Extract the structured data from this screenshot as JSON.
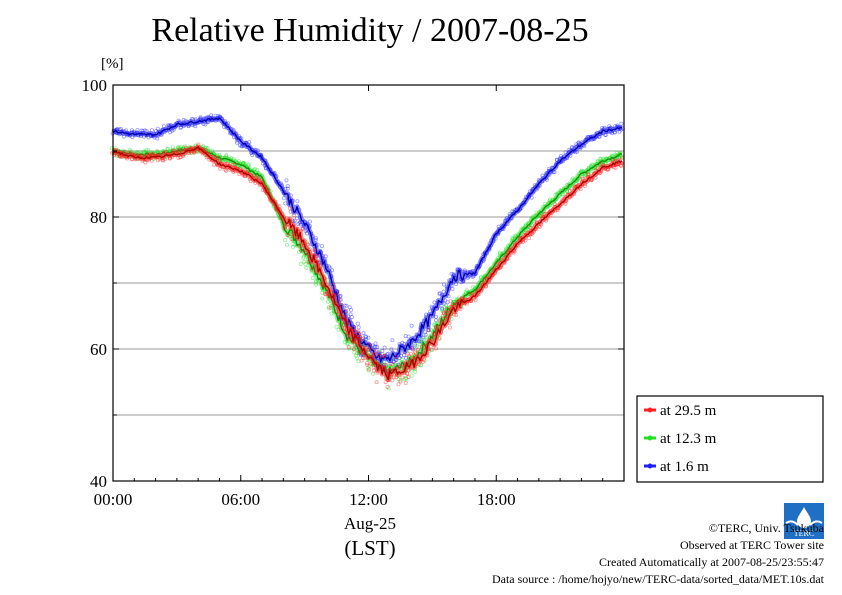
{
  "title": "Relative Humidity / 2007-08-25",
  "y_unit": "[%]",
  "x_date_label": "Aug-25",
  "x_zone_label": "(LST)",
  "legend": [
    {
      "label": "at 29.5 m",
      "color": "#ff2020"
    },
    {
      "label": "at 12.3 m",
      "color": "#20e020"
    },
    {
      "label": "at 1.6 m",
      "color": "#2020ff"
    }
  ],
  "footer": {
    "copyright": "©TERC, Univ. Tsukuba",
    "site": "Observed at TERC Tower site",
    "created": "Created Automatically at 2007-08-25/23:55:47",
    "source": "Data source : /home/hojyo/new/TERC-data/sorted_data/MET.10s.dat"
  },
  "logo_text": "TERC",
  "chart_data": {
    "type": "line",
    "title": "Relative Humidity / 2007-08-25",
    "ylabel": "[%]",
    "xlabel": "Aug-25 (LST)",
    "xlim": [
      0,
      24
    ],
    "ylim": [
      40,
      100
    ],
    "x_ticks": [
      "00:00",
      "06:00",
      "12:00",
      "18:00"
    ],
    "x_tick_values": [
      0,
      6,
      12,
      18
    ],
    "y_ticks": [
      "40",
      "60",
      "80",
      "100"
    ],
    "y_tick_values": [
      40,
      60,
      80,
      100
    ],
    "y_gridlines": [
      50,
      60,
      70,
      80,
      90
    ],
    "grid": true,
    "legend_position": "right-bottom",
    "x": [
      0,
      1,
      2,
      3,
      4,
      5,
      6,
      7,
      8,
      9,
      10,
      11,
      12,
      12.5,
      13,
      14,
      15,
      16,
      17,
      18,
      19,
      20,
      21,
      22,
      23,
      23.9
    ],
    "series": [
      {
        "name": "at 29.5 m",
        "color": "#ff2020",
        "values": [
          90,
          89,
          89,
          89.5,
          90.5,
          88,
          87,
          85,
          80,
          76,
          70,
          63,
          59,
          57,
          56,
          57.5,
          61,
          66,
          68,
          72,
          76,
          79,
          82,
          85,
          87.5,
          88.5
        ]
      },
      {
        "name": "at 12.3 m",
        "color": "#20e020",
        "values": [
          90,
          89.5,
          89.5,
          90,
          90.5,
          89,
          88,
          86,
          79,
          75,
          69,
          62,
          58.5,
          57,
          56.5,
          58,
          62,
          67,
          69,
          73,
          77,
          80.5,
          83.5,
          86.5,
          88.5,
          89.5
        ]
      },
      {
        "name": "at 1.6 m",
        "color": "#2020ff",
        "values": [
          93,
          92.5,
          92.5,
          94,
          94.5,
          95,
          91.5,
          89,
          84,
          79,
          72.5,
          64,
          60,
          58.5,
          58.5,
          61,
          65,
          71,
          71.5,
          77.5,
          81,
          85,
          88.5,
          91,
          93,
          93.5
        ]
      }
    ]
  }
}
